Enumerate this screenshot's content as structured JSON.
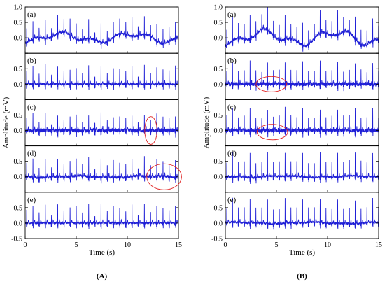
{
  "chart_data": [
    {
      "type": "line",
      "figure_label": "(A)",
      "xlabel": "Time (s)",
      "ylabel": "Amplitude (mV)",
      "xlim": [
        0,
        15
      ],
      "x_ticks": [
        "0",
        "5",
        "10",
        "15"
      ],
      "ylim": [
        -0.5,
        1.0
      ],
      "y_ticks": [
        "-0.5",
        "0.0",
        "0.5",
        "1.0"
      ],
      "series_color": "#1f1fd6",
      "panels": [
        {
          "label": "(a)",
          "beats_per_sec": 1.65,
          "r_peak": 0.62,
          "baseline_wander": 0.12,
          "noise": 0.04,
          "seed": 11
        },
        {
          "label": "(b)",
          "beats_per_sec": 1.65,
          "r_peak": 0.62,
          "baseline_wander": 0.0,
          "noise": 0.03,
          "seed": 23
        },
        {
          "label": "(c)",
          "beats_per_sec": 1.65,
          "r_peak": 0.55,
          "baseline_wander": 0.0,
          "noise": 0.06,
          "seed": 37
        },
        {
          "label": "(d)",
          "beats_per_sec": 1.65,
          "r_peak": 0.62,
          "baseline_wander": 0.02,
          "noise": 0.04,
          "seed": 41
        },
        {
          "label": "(e)",
          "beats_per_sec": 1.65,
          "r_peak": 0.62,
          "baseline_wander": 0.0,
          "noise": 0.03,
          "seed": 53
        }
      ],
      "annotations": [
        {
          "panel": 2,
          "shape": "ellipse",
          "color": "#e02020",
          "cx": 12.3,
          "cy": 0.0,
          "rx": 0.6,
          "ry": 0.45
        },
        {
          "panel": 3,
          "shape": "ellipse",
          "color": "#e02020",
          "cx": 13.6,
          "cy": 0.0,
          "rx": 1.7,
          "ry": 0.42
        }
      ]
    },
    {
      "type": "line",
      "figure_label": "(B)",
      "xlabel": "Time (s)",
      "ylabel": "Amplitude (mV)",
      "xlim": [
        0,
        15
      ],
      "x_ticks": [
        "0",
        "5",
        "10",
        "15"
      ],
      "ylim": [
        -0.5,
        1.0
      ],
      "y_ticks": [
        "-0.5",
        "0.0",
        "0.5",
        "1.0"
      ],
      "series_color": "#1f1fd6",
      "panels": [
        {
          "label": "(a)",
          "beats_per_sec": 1.75,
          "r_peak": 0.75,
          "baseline_wander": 0.18,
          "noise": 0.04,
          "seed": 61
        },
        {
          "label": "(b)",
          "beats_per_sec": 1.75,
          "r_peak": 0.72,
          "baseline_wander": 0.0,
          "noise": 0.06,
          "seed": 73
        },
        {
          "label": "(c)",
          "beats_per_sec": 1.75,
          "r_peak": 0.72,
          "baseline_wander": 0.0,
          "noise": 0.06,
          "seed": 83
        },
        {
          "label": "(d)",
          "beats_per_sec": 1.75,
          "r_peak": 0.78,
          "baseline_wander": 0.02,
          "noise": 0.03,
          "seed": 97
        },
        {
          "label": "(e)",
          "beats_per_sec": 1.75,
          "r_peak": 0.78,
          "baseline_wander": 0.02,
          "noise": 0.03,
          "seed": 101
        }
      ],
      "annotations": [
        {
          "panel": 1,
          "shape": "ellipse",
          "color": "#e02020",
          "cx": 4.5,
          "cy": 0.0,
          "rx": 1.5,
          "ry": 0.25
        },
        {
          "panel": 2,
          "shape": "ellipse",
          "color": "#e02020",
          "cx": 4.6,
          "cy": -0.05,
          "rx": 1.5,
          "ry": 0.25
        }
      ]
    }
  ]
}
